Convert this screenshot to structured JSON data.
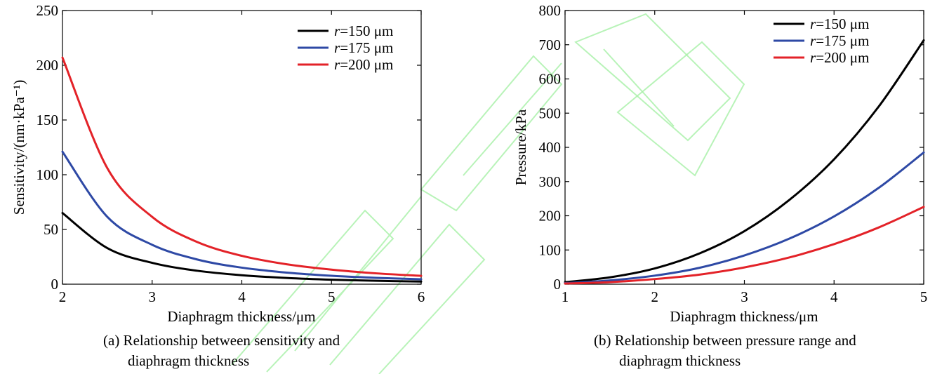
{
  "chart_data": [
    {
      "type": "line",
      "title": "",
      "xlabel": "Diaphragm thickness/μm",
      "ylabel": "Sensitivity/(nm·kPa⁻¹)",
      "xlim": [
        2,
        6
      ],
      "ylim": [
        0,
        250
      ],
      "xticks": [
        2,
        3,
        4,
        5,
        6
      ],
      "yticks": [
        0,
        50,
        100,
        150,
        200,
        250
      ],
      "grid": false,
      "legend_position": "top-right",
      "caption_line1": "(a) Relationship between sensitivity and",
      "caption_line2": "diaphragm thickness",
      "x": [
        2.0,
        2.5,
        3.0,
        3.5,
        4.0,
        4.5,
        5.0,
        5.5,
        6.0
      ],
      "series": [
        {
          "name": "r=150 μm",
          "name_var": "r",
          "name_rest": "=150 μm",
          "color": "#000000",
          "values": [
            65,
            33,
            19.5,
            12.3,
            8.2,
            5.7,
            4.1,
            3.1,
            2.4
          ]
        },
        {
          "name": "r=175 μm",
          "name_var": "r",
          "name_rest": "=175 μm",
          "color": "#2e49a5",
          "values": [
            121,
            61.5,
            36,
            22.6,
            15.1,
            10.6,
            7.7,
            5.8,
            4.5
          ]
        },
        {
          "name": "r=200 μm",
          "name_var": "r",
          "name_rest": "=200 μm",
          "color": "#e32228",
          "values": [
            207,
            106,
            61.5,
            38.6,
            25.9,
            18.2,
            13.3,
            9.9,
            7.6
          ]
        }
      ]
    },
    {
      "type": "line",
      "title": "",
      "xlabel": "Diaphragm thickness/μm",
      "ylabel": "Pressure/kPa",
      "xlim": [
        1,
        5
      ],
      "ylim": [
        0,
        800
      ],
      "xticks": [
        1,
        2,
        3,
        4,
        5
      ],
      "yticks": [
        0,
        100,
        200,
        300,
        400,
        500,
        600,
        700,
        800
      ],
      "grid": false,
      "legend_position": "top-right",
      "caption_line1": "(b) Relationship between pressure range and",
      "caption_line2": "diaphragm thickness",
      "x": [
        1.0,
        1.5,
        2.0,
        2.5,
        3.0,
        3.5,
        4.0,
        4.5,
        5.0
      ],
      "series": [
        {
          "name": "r=150 μm",
          "name_var": "r",
          "name_rest": "=150 μm",
          "color": "#000000",
          "values": [
            6,
            20,
            46,
            90,
            155,
            246,
            365,
            520,
            713
          ]
        },
        {
          "name": "r=175 μm",
          "name_var": "r",
          "name_rest": "=175 μm",
          "color": "#2e49a5",
          "values": [
            3,
            11,
            25,
            48,
            84,
            133,
            198,
            282,
            385
          ]
        },
        {
          "name": "r=200 μm",
          "name_var": "r",
          "name_rest": "=200 μm",
          "color": "#e32228",
          "values": [
            2,
            6,
            15,
            28,
            49,
            78,
            117,
            166,
            226
          ]
        }
      ]
    }
  ]
}
